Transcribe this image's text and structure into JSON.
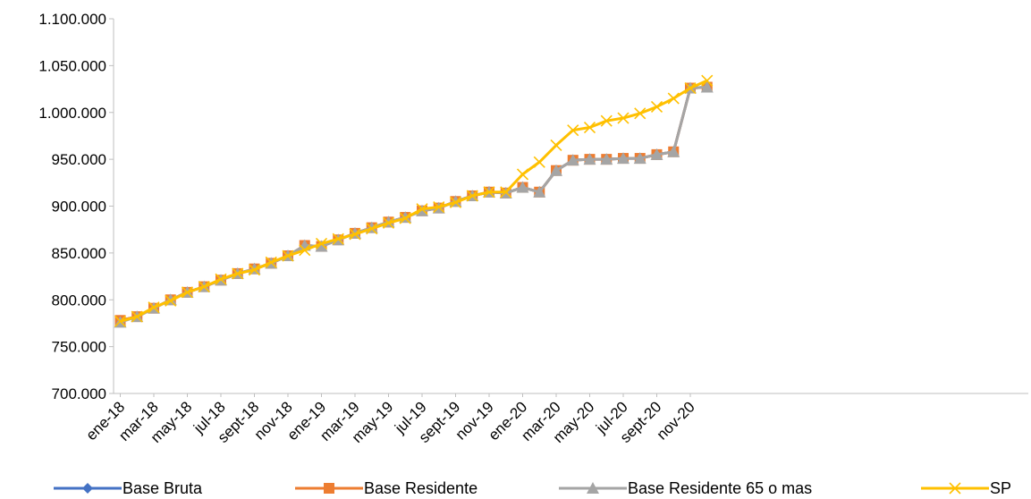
{
  "chart_data": {
    "type": "line",
    "title": "",
    "xlabel": "",
    "ylabel": "",
    "ylim": [
      700000,
      1100000
    ],
    "y_ticks": [
      "700.000",
      "750.000",
      "800.000",
      "850.000",
      "900.000",
      "950.000",
      "1.000.000",
      "1.050.000",
      "1.100.000"
    ],
    "x_tick_labels": [
      "ene-18",
      "mar-18",
      "may-18",
      "jul-18",
      "sept-18",
      "nov-18",
      "ene-19",
      "mar-19",
      "may-19",
      "jul-19",
      "sept-19",
      "nov-19",
      "ene-20",
      "mar-20",
      "may-20",
      "jul-20",
      "sept-20",
      "nov-20"
    ],
    "categories": [
      "ene-18",
      "feb-18",
      "mar-18",
      "abr-18",
      "may-18",
      "jun-18",
      "jul-18",
      "ago-18",
      "sept-18",
      "oct-18",
      "nov-18",
      "dic-18",
      "ene-19",
      "feb-19",
      "mar-19",
      "abr-19",
      "may-19",
      "jun-19",
      "jul-19",
      "ago-19",
      "sept-19",
      "oct-19",
      "nov-19",
      "dic-19",
      "ene-20",
      "feb-20",
      "mar-20",
      "abr-20",
      "may-20",
      "jun-20",
      "jul-20",
      "ago-20",
      "sept-20",
      "oct-20",
      "nov-20",
      "dic-20"
    ],
    "grid": false,
    "legend_position": "bottom",
    "series": [
      {
        "name": "Base Bruta",
        "color": "#4472C4",
        "marker": "diamond",
        "values": [
          778000,
          782000,
          791000,
          800000,
          808000,
          814000,
          821000,
          828000,
          833000,
          839000,
          847000,
          858000,
          857000,
          864000,
          871000,
          877000,
          883000,
          888000,
          895000,
          898000,
          905000,
          911000,
          915000,
          914000,
          920000,
          915000,
          938000,
          949000,
          950000,
          950000,
          951000,
          951000,
          955000,
          958000,
          1026000,
          1027000
        ]
      },
      {
        "name": "Base Residente",
        "color": "#ED7D31",
        "marker": "square",
        "values": [
          778000,
          782000,
          791000,
          800000,
          808000,
          814000,
          821000,
          828000,
          833000,
          839000,
          847000,
          858000,
          857000,
          864000,
          871000,
          877000,
          883000,
          888000,
          895000,
          898000,
          905000,
          911000,
          915000,
          914000,
          920000,
          915000,
          938000,
          949000,
          950000,
          950000,
          951000,
          951000,
          955000,
          958000,
          1026000,
          1027000
        ]
      },
      {
        "name": "Base Residente 65 o mas",
        "color": "#A5A5A5",
        "marker": "triangle",
        "values": [
          776000,
          782000,
          791000,
          800000,
          808000,
          814000,
          821000,
          828000,
          833000,
          839000,
          847000,
          858000,
          857000,
          864000,
          871000,
          877000,
          883000,
          888000,
          895000,
          898000,
          905000,
          911000,
          915000,
          914000,
          920000,
          915000,
          938000,
          949000,
          950000,
          950000,
          951000,
          951000,
          955000,
          958000,
          1026000,
          1027000
        ]
      },
      {
        "name": "SP",
        "color": "#FFC000",
        "marker": "x",
        "values": [
          777000,
          782000,
          792000,
          799000,
          808000,
          814000,
          822000,
          828000,
          832000,
          840000,
          847000,
          853000,
          860000,
          865000,
          870000,
          876000,
          882000,
          887000,
          897000,
          899000,
          904000,
          911000,
          915000,
          915000,
          934000,
          947000,
          965000,
          981000,
          984000,
          991000,
          994000,
          999000,
          1006000,
          1015000,
          1026000,
          1034000
        ]
      }
    ]
  }
}
